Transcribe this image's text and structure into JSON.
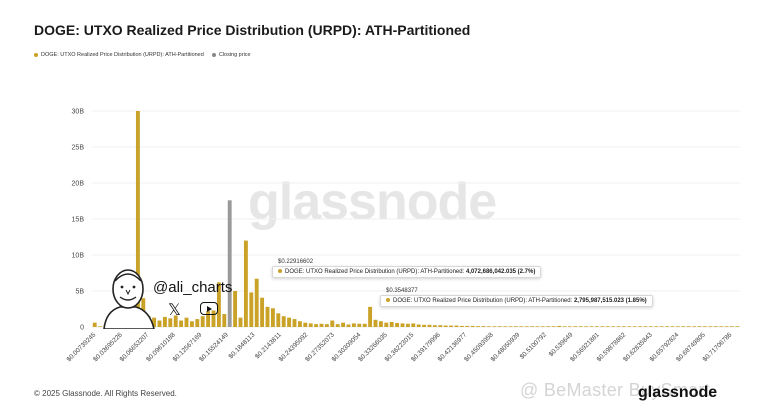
{
  "title": "DOGE: UTXO Realized Price Distribution (URPD): ATH-Partitioned",
  "legend": [
    {
      "label": "DOGE: UTXO Realized Price Distribution (URPD): ATH-Partitioned",
      "color": "#c9a227"
    },
    {
      "label": "Closing price",
      "color": "#888888"
    }
  ],
  "footer": "© 2025 Glassnode. All Rights Reserved.",
  "watermark": "glassnode",
  "overlay_watermark": "@ BeMaster BuySmart",
  "logo": "glassnode",
  "social": {
    "handle": "@ali_charts",
    "x_icon": "x-icon",
    "youtube_icon": "youtube-icon"
  },
  "colors": {
    "bar": "#c9a227",
    "closing": "#9a9a9a",
    "grid": "#efefef"
  },
  "tooltips": [
    {
      "head": "$0.22916602",
      "label": "DOGE: UTXO Realized Price Distribution (URPD): ATH-Partitioned:",
      "value": "4,072,686,042.035 (2.7%)"
    },
    {
      "head": "$0.3548377",
      "label": "DOGE: UTXO Realized Price Distribution (URPD): ATH-Partitioned:",
      "value": "2,795,987,515.023 (1.85%)"
    }
  ],
  "chart_data": {
    "type": "bar",
    "title": "DOGE: UTXO Realized Price Distribution (URPD): ATH-Partitioned",
    "xlabel": "",
    "ylabel": "",
    "ylim": [
      0,
      30000000000
    ],
    "y_ticks": [
      {
        "label": "30B",
        "value": 30000000000
      },
      {
        "label": "25B",
        "value": 25000000000
      },
      {
        "label": "20B",
        "value": 20000000000
      },
      {
        "label": "15B",
        "value": 15000000000
      },
      {
        "label": "10B",
        "value": 10000000000
      },
      {
        "label": "5B",
        "value": 5000000000
      },
      {
        "label": "0",
        "value": 0
      }
    ],
    "x_ticks": [
      "$0.00739245",
      "$0.03695226",
      "$0.06653207",
      "$0.09610188",
      "$0.12567169",
      "$0.15524149",
      "$0.1848113",
      "$0.2143811",
      "$0.24395092",
      "$0.27352073",
      "$0.30309054",
      "$0.33266035",
      "$0.36223015",
      "$0.39179996",
      "$0.42136977",
      "$0.45093958",
      "$0.48050939",
      "$0.5100792",
      "$0.539649",
      "$0.56921881",
      "$0.59878862",
      "$0.62835843",
      "$0.65792824",
      "$0.68749805",
      "$0.71706786"
    ],
    "closing_price_bin": 25,
    "grid": true,
    "legend_position": "top-left",
    "series": [
      {
        "name": "DOGE: UTXO Realized Price Distribution (URPD): ATH-Partitioned",
        "values": [
          0.6,
          0.1,
          0.3,
          0.5,
          0.7,
          0.9,
          1.0,
          1.1,
          30.0,
          4.0,
          1.5,
          1.3,
          0.9,
          1.4,
          1.2,
          1.6,
          0.9,
          1.3,
          0.8,
          1.1,
          1.5,
          2.2,
          2.3,
          6.2,
          1.8,
          17.6,
          5.0,
          1.3,
          12.0,
          4.8,
          6.7,
          4.07,
          2.8,
          2.6,
          1.9,
          1.5,
          1.3,
          1.1,
          0.8,
          0.6,
          0.5,
          0.4,
          0.45,
          0.4,
          0.9,
          0.4,
          0.6,
          0.35,
          0.5,
          0.45,
          0.45,
          2.8,
          1.0,
          0.8,
          0.6,
          0.7,
          0.55,
          0.5,
          0.45,
          0.5,
          0.35,
          0.3,
          0.3,
          0.25,
          0.25,
          0.2,
          0.2,
          0.2,
          0.15,
          0.15,
          0.15,
          0.12,
          0.12,
          0.1,
          0.1,
          0.1,
          0.1,
          0.1,
          0.1,
          0.1,
          0.1,
          0.1,
          0.1,
          0.1,
          0.1,
          0.1,
          0.15,
          0.1,
          0.1,
          0.1,
          0.1,
          0.1,
          0.1,
          0.1,
          0.1,
          0.1,
          0.1,
          0.1,
          0.1,
          0.1,
          0.1,
          0.1,
          0.1,
          0.1,
          0.1,
          0.1,
          0.1,
          0.1,
          0.1,
          0.1,
          0.1,
          0.1,
          0.1,
          0.1,
          0.1,
          0.1,
          0.1,
          0.1,
          0.1,
          0.1
        ],
        "unit_multiplier": 1000000000
      }
    ]
  }
}
